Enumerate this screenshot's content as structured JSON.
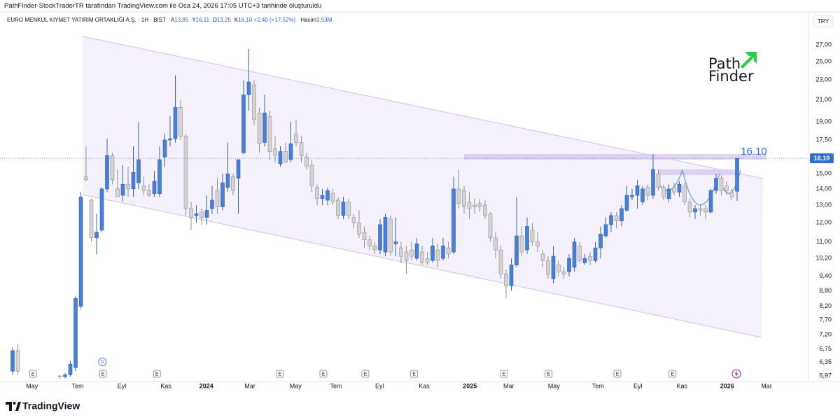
{
  "header": {
    "attribution": "PathFinder-StockTraderTR tarafından TradingView.com ile Oca 24, 2026 17:05 UTC+3 tarihinde oluşturuldu",
    "symbol": "EURO MENKUL KIYMET YATIRIM ORTAKLIĞI A.Ş. · 1H · BIST",
    "ohlc_legend": [
      {
        "key": "A",
        "value": "13,85"
      },
      {
        "key": "Y",
        "value": "16,11"
      },
      {
        "key": "D",
        "value": "13,25"
      },
      {
        "key": "K",
        "value": "16,10"
      }
    ],
    "change": "+2,40 (+17,52%)",
    "volume_key": "Hacim",
    "volume": "3,53M"
  },
  "logo": {
    "line1": "Path",
    "line2": "Finder"
  },
  "footer": {
    "brand": "TradingView"
  },
  "chart_data": {
    "type": "candlestick",
    "currency": "TRY",
    "log_scale": true,
    "grid": false,
    "up_color": "#4a7fd6",
    "down_color": "#d4d4d4",
    "ohlc": {
      "open": [
        6.1,
        6.7,
        null,
        null,
        null,
        null,
        null,
        null,
        null,
        5.97,
        5.95,
        6.0,
        6.2,
        8.2,
        14.8,
        13.3,
        11.2,
        11.6,
        14.0,
        16.3,
        14.0,
        13.6,
        14.3,
        14.0,
        14.4,
        14.2,
        13.9,
        13.7,
        13.7,
        16.2,
        17.5,
        17.6,
        20.3,
        17.8,
        12.8,
        12.4,
        12.6,
        12.3,
        12.8,
        13.9,
        12.9,
        14.1,
        14.8,
        14.7,
        16.5,
        21.5,
        22.5,
        19.8,
        17.3,
        19.5,
        16.8,
        15.7,
        16.6,
        16.0,
        18.0,
        17.3,
        16.2,
        15.6,
        14.1,
        13.4,
        13.3,
        13.7,
        13.3,
        12.4,
        13.2,
        12.3,
        12.0,
        11.5,
        11.1,
        10.8,
        10.6,
        10.5,
        12.2,
        10.9,
        10.7,
        10.5,
        10.6,
        10.2,
        10.5,
        10.2,
        10.1,
        10.6,
        10.2,
        10.7,
        10.5,
        14.0,
        13.9,
        13.2,
        13.0,
        13.1,
        13.0,
        12.5,
        11.2,
        10.6,
        9.5,
        9.0,
        9.9,
        11.3,
        10.6,
        11.6,
        11.0,
        10.4,
        10.1,
        9.3,
        9.9,
        9.6,
        9.6,
        9.8,
        10.8,
        10.0,
        10.3,
        10.1,
        10.7,
        11.3,
        11.9,
        12.4,
        12.1,
        12.7,
        13.5,
        13.6,
        13.2,
        14.1,
        13.6,
        15.0,
        14.1,
        13.4,
        14.1,
        13.8,
        14.2,
        13.2,
        12.6,
        12.8,
        12.8,
        12.6,
        13.9,
        14.7,
        14.2,
        13.8,
        13.85
      ],
      "high": [
        6.8,
        6.9,
        null,
        null,
        null,
        null,
        null,
        null,
        null,
        6.0,
        6.05,
        6.4,
        8.6,
        13.8,
        17.0,
        13.4,
        12.5,
        14.1,
        17.6,
        16.5,
        15.3,
        15.6,
        15.5,
        17.0,
        19.0,
        14.8,
        14.3,
        15.2,
        17.0,
        18.0,
        19.5,
        23.5,
        21.0,
        18.0,
        13.2,
        13.0,
        12.8,
        13.6,
        14.2,
        14.7,
        15.0,
        17.3,
        15.0,
        16.0,
        23.0,
        26.5,
        23.0,
        20.3,
        21.5,
        20.0,
        17.8,
        17.0,
        17.3,
        19.0,
        19.2,
        17.8,
        16.5,
        16.0,
        14.3,
        14.0,
        14.1,
        14.0,
        13.5,
        13.5,
        13.4,
        12.5,
        12.7,
        11.8,
        11.3,
        11.0,
        12.2,
        12.5,
        12.4,
        12.3,
        11.0,
        10.8,
        11.0,
        11.2,
        10.8,
        10.5,
        11.2,
        10.9,
        11.2,
        11.0,
        14.8,
        15.3,
        14.2,
        13.8,
        13.4,
        13.4,
        13.3,
        12.6,
        11.5,
        10.8,
        9.7,
        10.2,
        13.5,
        11.8,
        12.3,
        12.0,
        11.5,
        10.6,
        10.3,
        10.8,
        10.1,
        9.8,
        10.4,
        11.2,
        11.0,
        10.4,
        10.5,
        11.0,
        11.8,
        12.3,
        12.6,
        12.6,
        13.0,
        14.2,
        14.0,
        14.6,
        14.2,
        14.3,
        16.4,
        15.3,
        14.3,
        14.3,
        14.4,
        14.5,
        14.4,
        13.4,
        13.0,
        13.0,
        13.0,
        14.0,
        15.0,
        14.9,
        14.5,
        14.0,
        16.11
      ],
      "low": [
        6.0,
        6.0,
        null,
        null,
        null,
        null,
        null,
        null,
        null,
        5.9,
        5.9,
        5.95,
        6.1,
        8.1,
        14.5,
        11.0,
        10.4,
        11.5,
        13.8,
        14.3,
        13.5,
        13.2,
        13.5,
        13.5,
        14.0,
        13.6,
        13.5,
        13.5,
        13.5,
        15.5,
        17.0,
        17.3,
        17.5,
        12.4,
        11.6,
        12.0,
        11.9,
        11.9,
        12.5,
        12.5,
        12.7,
        13.8,
        13.6,
        12.5,
        16.4,
        20.0,
        18.7,
        16.5,
        17.0,
        16.0,
        15.8,
        15.5,
        15.8,
        15.8,
        17.0,
        15.8,
        15.3,
        13.8,
        13.0,
        13.0,
        13.0,
        13.0,
        12.2,
        12.2,
        12.2,
        11.7,
        11.2,
        10.7,
        10.6,
        10.4,
        10.4,
        10.3,
        10.3,
        10.3,
        10.0,
        9.5,
        10.1,
        10.1,
        9.9,
        9.9,
        10.0,
        9.8,
        10.1,
        10.2,
        10.4,
        12.8,
        12.5,
        12.2,
        12.5,
        12.6,
        12.2,
        11.0,
        10.2,
        9.3,
        8.5,
        8.8,
        9.8,
        10.3,
        10.4,
        10.8,
        10.5,
        9.8,
        9.3,
        9.1,
        9.4,
        9.3,
        9.4,
        9.6,
        10.0,
        9.9,
        9.9,
        10.0,
        10.2,
        11.2,
        11.5,
        11.7,
        11.8,
        12.6,
        13.3,
        12.8,
        13.0,
        13.3,
        13.4,
        13.9,
        13.3,
        13.2,
        13.6,
        13.5,
        13.0,
        12.3,
        12.2,
        12.4,
        12.2,
        12.5,
        13.7,
        13.6,
        13.6,
        13.3,
        13.25
      ],
      "close": [
        6.7,
        6.1,
        null,
        null,
        null,
        null,
        null,
        null,
        null,
        5.95,
        6.0,
        6.3,
        8.5,
        13.5,
        14.6,
        11.2,
        11.5,
        14.0,
        16.3,
        14.6,
        13.5,
        14.3,
        14.0,
        15.1,
        16.0,
        13.9,
        13.6,
        14.5,
        16.0,
        17.5,
        17.6,
        20.3,
        17.8,
        12.8,
        12.3,
        12.5,
        12.3,
        12.7,
        13.3,
        12.9,
        14.4,
        15.0,
        13.9,
        16.0,
        21.5,
        22.8,
        19.2,
        17.2,
        19.8,
        16.6,
        16.3,
        16.6,
        15.8,
        17.2,
        17.3,
        16.3,
        15.5,
        14.2,
        13.4,
        13.6,
        13.9,
        13.2,
        12.4,
        13.2,
        12.4,
        12.0,
        11.4,
        11.1,
        10.8,
        10.6,
        11.9,
        12.3,
        10.5,
        11.0,
        10.3,
        10.1,
        10.3,
        10.9,
        10.0,
        10.0,
        10.8,
        10.1,
        10.8,
        10.4,
        14.0,
        13.1,
        12.9,
        12.8,
        12.9,
        12.9,
        12.4,
        11.2,
        10.6,
        9.5,
        9.0,
        9.9,
        11.3,
        10.5,
        11.8,
        11.0,
        10.8,
        10.1,
        9.5,
        10.3,
        9.6,
        9.5,
        10.2,
        11.0,
        10.1,
        10.2,
        10.1,
        10.7,
        11.4,
        11.9,
        12.4,
        12.1,
        12.8,
        13.6,
        13.6,
        14.2,
        14.0,
        13.6,
        15.3,
        14.1,
        13.5,
        14.0,
        13.8,
        14.3,
        13.2,
        12.6,
        12.8,
        12.7,
        12.6,
        13.9,
        14.7,
        13.9,
        13.9,
        13.5,
        16.1
      ]
    },
    "xlim": [
      -2.4,
      151.6
    ],
    "xticks": [
      {
        "value": 3.7,
        "label": "May"
      },
      {
        "value": 12.4,
        "label": "Tem"
      },
      {
        "value": 20.8,
        "label": "Eyl"
      },
      {
        "value": 29.2,
        "label": "Kas"
      },
      {
        "value": 36.9,
        "label": "2024"
      },
      {
        "value": 45.2,
        "label": "Mar"
      },
      {
        "value": 53.9,
        "label": "May"
      },
      {
        "value": 61.6,
        "label": "Tem"
      },
      {
        "value": 69.9,
        "label": "Eyl"
      },
      {
        "value": 78.4,
        "label": "Kas"
      },
      {
        "value": 87.1,
        "label": "2025"
      },
      {
        "value": 94.5,
        "label": "Mar"
      },
      {
        "value": 103.1,
        "label": "May"
      },
      {
        "value": 111.5,
        "label": "Tem"
      },
      {
        "value": 119.1,
        "label": "Eyl"
      },
      {
        "value": 127.5,
        "label": "Kas"
      },
      {
        "value": 136.1,
        "label": "2026"
      },
      {
        "value": 143.6,
        "label": "Mar"
      }
    ],
    "ylim": [
      5.82,
      30.1
    ],
    "yticks": [
      {
        "value": 27,
        "label": "27,00"
      },
      {
        "value": 25,
        "label": "25,00"
      },
      {
        "value": 23,
        "label": "23,00"
      },
      {
        "value": 21,
        "label": "21,00"
      },
      {
        "value": 19,
        "label": "19,00"
      },
      {
        "value": 17.5,
        "label": "17,50"
      },
      {
        "value": 15,
        "label": "15,00"
      },
      {
        "value": 14,
        "label": "14,00"
      },
      {
        "value": 13,
        "label": "13,00"
      },
      {
        "value": 12,
        "label": "12,00"
      },
      {
        "value": 11,
        "label": "11,00"
      },
      {
        "value": 10.2,
        "label": "10,20"
      },
      {
        "value": 9.4,
        "label": "9,40"
      },
      {
        "value": 8.8,
        "label": "8,80"
      },
      {
        "value": 8.2,
        "label": "8,20"
      },
      {
        "value": 7.7,
        "label": "7,70"
      },
      {
        "value": 7.2,
        "label": "7,20"
      },
      {
        "value": 6.75,
        "label": "6,75"
      },
      {
        "value": 6.35,
        "label": "6,35"
      },
      {
        "value": 5.97,
        "label": "5,97"
      }
    ],
    "price_label": {
      "value": 16.1,
      "label": "16,10"
    },
    "annotation": "16.10",
    "events": [
      {
        "x": 3.9,
        "label": "E"
      },
      {
        "x": 17.2,
        "label": "E"
      },
      {
        "x": 27.5,
        "label": "E"
      },
      {
        "x": 50.9,
        "label": "E"
      },
      {
        "x": 59.2,
        "label": "E"
      },
      {
        "x": 67.2,
        "label": "E"
      },
      {
        "x": 76.5,
        "label": "E"
      },
      {
        "x": 93.6,
        "label": "E"
      },
      {
        "x": 102.1,
        "label": "E"
      },
      {
        "x": 115.2,
        "label": "E"
      },
      {
        "x": 125.7,
        "label": "E"
      }
    ],
    "dividends": [
      {
        "x": 17.1,
        "label": "D"
      }
    ]
  }
}
